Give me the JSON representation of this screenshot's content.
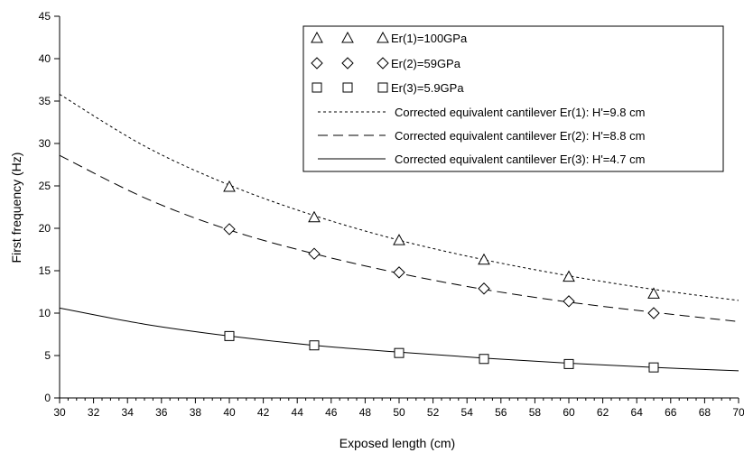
{
  "chart_data": {
    "type": "scatter",
    "xlabel": "Exposed length (cm)",
    "ylabel": "First frequency (Hz)",
    "xlim": [
      30,
      70
    ],
    "ylim": [
      0,
      45
    ],
    "x_ticks": [
      30,
      32,
      34,
      36,
      38,
      40,
      42,
      44,
      46,
      48,
      50,
      52,
      54,
      56,
      58,
      60,
      62,
      64,
      66,
      68,
      70
    ],
    "y_ticks": [
      0,
      5,
      10,
      15,
      20,
      25,
      30,
      35,
      40,
      45
    ],
    "grid": false,
    "legend_position": "top-right",
    "marker_series": [
      {
        "name": "Er(1)=100GPa",
        "marker": "triangle",
        "x": [
          40,
          45,
          50,
          55,
          60,
          65
        ],
        "y": [
          24.9,
          21.3,
          18.6,
          16.3,
          14.3,
          12.3
        ]
      },
      {
        "name": "Er(2)=59GPa",
        "marker": "diamond",
        "x": [
          40,
          45,
          50,
          55,
          60,
          65
        ],
        "y": [
          19.9,
          17.0,
          14.8,
          12.9,
          11.4,
          10.0
        ]
      },
      {
        "name": "Er(3)=5.9GPa",
        "marker": "square",
        "x": [
          40,
          45,
          50,
          55,
          60,
          65
        ],
        "y": [
          7.3,
          6.2,
          5.3,
          4.6,
          4.0,
          3.6
        ]
      }
    ],
    "line_series": [
      {
        "name": "Corrected equivalent cantilever Er(1): H'=9.8 cm",
        "style": "dotted",
        "x": [
          30,
          35,
          40,
          45,
          50,
          55,
          60,
          65,
          70
        ],
        "y": [
          35.8,
          29.7,
          25.1,
          21.5,
          18.6,
          16.3,
          14.4,
          12.8,
          11.5
        ]
      },
      {
        "name": "Corrected equivalent cantilever Er(2): H'=8.8 cm",
        "style": "dashed",
        "x": [
          30,
          35,
          40,
          45,
          50,
          55,
          60,
          65,
          70
        ],
        "y": [
          28.6,
          23.6,
          19.8,
          17.0,
          14.7,
          12.8,
          11.3,
          10.1,
          9.0
        ]
      },
      {
        "name": "Corrected equivalent cantilever Er(3): H'=4.7 cm",
        "style": "solid",
        "x": [
          30,
          35,
          40,
          45,
          50,
          55,
          60,
          65,
          70
        ],
        "y": [
          10.6,
          8.7,
          7.3,
          6.2,
          5.4,
          4.7,
          4.1,
          3.6,
          3.2
        ]
      }
    ]
  }
}
